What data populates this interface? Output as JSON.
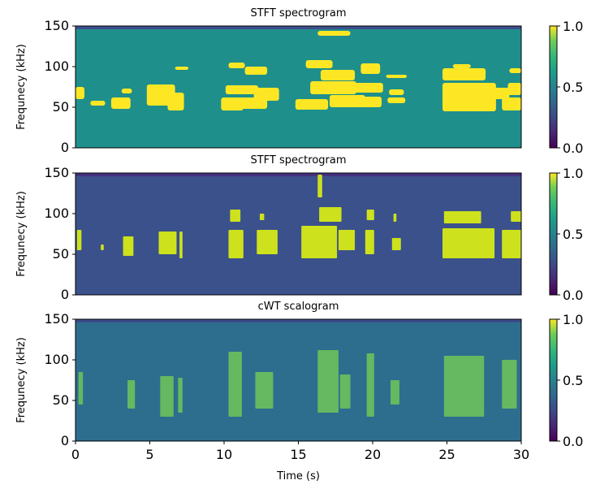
{
  "chart_data": [
    {
      "type": "heatmap",
      "title": "STFT spectrogram",
      "ylabel": "Frequnecy (kHz)",
      "xlabel": "",
      "xlim": [
        0,
        30
      ],
      "ylim": [
        0,
        150
      ],
      "xticks": [],
      "yticks": [
        "0",
        "50",
        "100",
        "150"
      ],
      "colormap": "viridis",
      "colorbar": {
        "range": [
          0.0,
          1.0
        ],
        "ticks": [
          "0.0",
          "0.5",
          "1.0"
        ]
      },
      "background": "#1f8f8c",
      "vignette": "#3d4f8b",
      "blobs": [
        {
          "t0": 0.0,
          "t1": 0.6,
          "f0": 60,
          "f1": 75
        },
        {
          "t0": 1.0,
          "t1": 2.0,
          "f0": 52,
          "f1": 58
        },
        {
          "t0": 2.4,
          "t1": 3.7,
          "f0": 48,
          "f1": 62
        },
        {
          "t0": 3.1,
          "t1": 3.8,
          "f0": 67,
          "f1": 73
        },
        {
          "t0": 4.8,
          "t1": 6.7,
          "f0": 52,
          "f1": 78
        },
        {
          "t0": 6.2,
          "t1": 7.3,
          "f0": 46,
          "f1": 68
        },
        {
          "t0": 6.7,
          "t1": 7.6,
          "f0": 96,
          "f1": 100
        },
        {
          "t0": 9.8,
          "t1": 11.3,
          "f0": 46,
          "f1": 62
        },
        {
          "t0": 10.1,
          "t1": 12.3,
          "f0": 66,
          "f1": 77
        },
        {
          "t0": 10.3,
          "t1": 11.4,
          "f0": 98,
          "f1": 105
        },
        {
          "t0": 11.4,
          "t1": 12.9,
          "f0": 90,
          "f1": 100
        },
        {
          "t0": 11.0,
          "t1": 12.9,
          "f0": 48,
          "f1": 62
        },
        {
          "t0": 12.0,
          "t1": 13.7,
          "f0": 58,
          "f1": 74
        },
        {
          "t0": 14.8,
          "t1": 17.0,
          "f0": 47,
          "f1": 60
        },
        {
          "t0": 15.5,
          "t1": 17.3,
          "f0": 98,
          "f1": 108
        },
        {
          "t0": 15.8,
          "t1": 18.9,
          "f0": 66,
          "f1": 82
        },
        {
          "t0": 16.5,
          "t1": 18.8,
          "f0": 83,
          "f1": 96
        },
        {
          "t0": 17.1,
          "t1": 19.5,
          "f0": 50,
          "f1": 65
        },
        {
          "t0": 16.3,
          "t1": 18.5,
          "f0": 138,
          "f1": 144
        },
        {
          "t0": 18.7,
          "t1": 20.7,
          "f0": 68,
          "f1": 80
        },
        {
          "t0": 19.2,
          "t1": 20.5,
          "f0": 91,
          "f1": 104
        },
        {
          "t0": 19.0,
          "t1": 20.6,
          "f0": 50,
          "f1": 63
        },
        {
          "t0": 21.0,
          "t1": 22.2,
          "f0": 55,
          "f1": 62
        },
        {
          "t0": 21.1,
          "t1": 22.1,
          "f0": 65,
          "f1": 72
        },
        {
          "t0": 20.9,
          "t1": 22.3,
          "f0": 86,
          "f1": 90
        },
        {
          "t0": 24.7,
          "t1": 28.3,
          "f0": 45,
          "f1": 80
        },
        {
          "t0": 24.7,
          "t1": 27.6,
          "f0": 83,
          "f1": 98
        },
        {
          "t0": 25.4,
          "t1": 26.6,
          "f0": 98,
          "f1": 103
        },
        {
          "t0": 28.0,
          "t1": 29.2,
          "f0": 60,
          "f1": 74
        },
        {
          "t0": 28.7,
          "t1": 30.0,
          "f0": 46,
          "f1": 62
        },
        {
          "t0": 29.1,
          "t1": 30.0,
          "f0": 65,
          "f1": 80
        },
        {
          "t0": 29.2,
          "t1": 30.0,
          "f0": 92,
          "f1": 98
        }
      ]
    },
    {
      "type": "heatmap",
      "title": "STFT spectrogram",
      "ylabel": "Frequnecy (kHz)",
      "xlabel": "",
      "xlim": [
        0,
        30
      ],
      "ylim": [
        0,
        150
      ],
      "xticks": [],
      "yticks": [
        "0",
        "50",
        "100",
        "150"
      ],
      "colormap": "viridis",
      "colorbar": {
        "range": [
          0.0,
          1.0
        ],
        "ticks": [
          "0.0",
          "0.5",
          "1.0"
        ]
      },
      "background": "#3b518b",
      "vignette": "#45317e",
      "blobs": [
        {
          "t0": 0.1,
          "t1": 0.4,
          "f0": 55,
          "f1": 80
        },
        {
          "t0": 1.7,
          "t1": 1.9,
          "f0": 55,
          "f1": 62
        },
        {
          "t0": 3.2,
          "t1": 3.9,
          "f0": 48,
          "f1": 72
        },
        {
          "t0": 5.6,
          "t1": 6.8,
          "f0": 50,
          "f1": 78
        },
        {
          "t0": 7.0,
          "t1": 7.2,
          "f0": 45,
          "f1": 78
        },
        {
          "t0": 10.3,
          "t1": 11.3,
          "f0": 45,
          "f1": 80
        },
        {
          "t0": 10.4,
          "t1": 11.1,
          "f0": 90,
          "f1": 105
        },
        {
          "t0": 12.2,
          "t1": 13.6,
          "f0": 50,
          "f1": 80
        },
        {
          "t0": 12.4,
          "t1": 12.7,
          "f0": 92,
          "f1": 100
        },
        {
          "t0": 15.2,
          "t1": 17.6,
          "f0": 45,
          "f1": 85
        },
        {
          "t0": 16.3,
          "t1": 16.6,
          "f0": 120,
          "f1": 148
        },
        {
          "t0": 16.4,
          "t1": 17.9,
          "f0": 90,
          "f1": 108
        },
        {
          "t0": 17.7,
          "t1": 18.8,
          "f0": 55,
          "f1": 80
        },
        {
          "t0": 19.5,
          "t1": 20.1,
          "f0": 50,
          "f1": 80
        },
        {
          "t0": 19.6,
          "t1": 20.1,
          "f0": 92,
          "f1": 105
        },
        {
          "t0": 21.3,
          "t1": 21.9,
          "f0": 55,
          "f1": 70
        },
        {
          "t0": 21.4,
          "t1": 21.6,
          "f0": 90,
          "f1": 100
        },
        {
          "t0": 24.7,
          "t1": 28.2,
          "f0": 45,
          "f1": 82
        },
        {
          "t0": 24.8,
          "t1": 27.3,
          "f0": 88,
          "f1": 103
        },
        {
          "t0": 28.7,
          "t1": 30.0,
          "f0": 45,
          "f1": 80
        },
        {
          "t0": 29.3,
          "t1": 30.0,
          "f0": 90,
          "f1": 103
        }
      ]
    },
    {
      "type": "heatmap",
      "title": "cWT scalogram",
      "ylabel": "Frequnecy (kHz)",
      "xlabel": "Time (s)",
      "xlim": [
        0,
        30
      ],
      "ylim": [
        0,
        150
      ],
      "xticks": [
        "0",
        "5",
        "10",
        "15",
        "20",
        "25",
        "30"
      ],
      "yticks": [
        "0",
        "50",
        "100",
        "150"
      ],
      "colormap": "viridis",
      "colorbar": {
        "range": [
          0.0,
          1.0
        ],
        "ticks": [
          "0.0",
          "0.5",
          "1.0"
        ]
      },
      "background": "#2d6e8e",
      "vignette": "#3b4c8a",
      "blobs": [
        {
          "t0": 0.2,
          "t1": 0.5,
          "f0": 45,
          "f1": 85
        },
        {
          "t0": 3.5,
          "t1": 4.0,
          "f0": 40,
          "f1": 75
        },
        {
          "t0": 5.7,
          "t1": 6.6,
          "f0": 30,
          "f1": 80
        },
        {
          "t0": 6.9,
          "t1": 7.2,
          "f0": 35,
          "f1": 78
        },
        {
          "t0": 10.3,
          "t1": 11.2,
          "f0": 30,
          "f1": 110
        },
        {
          "t0": 12.1,
          "t1": 13.3,
          "f0": 40,
          "f1": 85
        },
        {
          "t0": 16.3,
          "t1": 17.7,
          "f0": 35,
          "f1": 112
        },
        {
          "t0": 17.8,
          "t1": 18.5,
          "f0": 40,
          "f1": 82
        },
        {
          "t0": 19.6,
          "t1": 20.1,
          "f0": 30,
          "f1": 108
        },
        {
          "t0": 21.2,
          "t1": 21.8,
          "f0": 45,
          "f1": 75
        },
        {
          "t0": 24.8,
          "t1": 27.5,
          "f0": 30,
          "f1": 105
        },
        {
          "t0": 28.7,
          "t1": 29.7,
          "f0": 40,
          "f1": 100
        }
      ]
    }
  ]
}
